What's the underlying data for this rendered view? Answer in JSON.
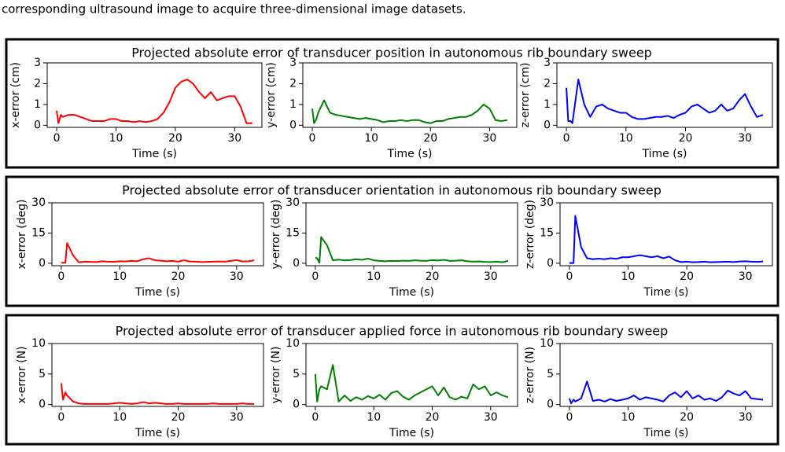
{
  "caption": "corresponding ultrasound image to acquire three-dimensional image datasets.",
  "chart_data": [
    {
      "type": "line",
      "title": "Projected absolute error of transducer position in autonomous rib boundary sweep",
      "xlabel": "Time (s)",
      "ylabel": "x-error (cm)",
      "color": "#ff0000",
      "xlim": [
        -1.6,
        34.6
      ],
      "xticks": [
        0,
        10,
        20,
        30
      ],
      "ylim": [
        -0.1,
        3
      ],
      "yticks": [
        0,
        1,
        2,
        3
      ],
      "x": [
        0,
        0.3,
        0.7,
        1,
        2,
        3,
        4,
        5,
        6,
        7,
        8,
        9,
        10,
        11,
        12,
        13,
        14,
        15,
        16,
        17,
        18,
        19,
        20,
        21,
        22,
        23,
        24,
        25,
        26,
        27,
        28,
        29,
        30,
        31,
        32,
        33
      ],
      "values": [
        0.7,
        0.1,
        0.5,
        0.4,
        0.5,
        0.5,
        0.4,
        0.3,
        0.2,
        0.2,
        0.2,
        0.3,
        0.3,
        0.2,
        0.2,
        0.15,
        0.2,
        0.15,
        0.2,
        0.3,
        0.6,
        1.1,
        1.8,
        2.1,
        2.2,
        2.0,
        1.6,
        1.3,
        1.6,
        1.2,
        1.3,
        1.4,
        1.4,
        0.9,
        0.1,
        0.1
      ]
    },
    {
      "type": "line",
      "xlabel": "Time (s)",
      "ylabel": "y-error (cm)",
      "color": "#008000",
      "xlim": [
        -1.6,
        34.6
      ],
      "xticks": [
        0,
        10,
        20,
        30
      ],
      "ylim": [
        -0.1,
        3
      ],
      "yticks": [
        0,
        1,
        2,
        3
      ],
      "x": [
        0,
        0.3,
        0.7,
        1,
        2,
        3,
        4,
        5,
        6,
        7,
        8,
        9,
        10,
        11,
        12,
        13,
        14,
        15,
        16,
        17,
        18,
        19,
        20,
        21,
        22,
        23,
        24,
        25,
        26,
        27,
        28,
        29,
        30,
        31,
        32,
        33
      ],
      "values": [
        0.8,
        0.1,
        0.3,
        0.6,
        1.2,
        0.6,
        0.5,
        0.45,
        0.4,
        0.35,
        0.3,
        0.35,
        0.3,
        0.25,
        0.15,
        0.2,
        0.2,
        0.25,
        0.2,
        0.25,
        0.25,
        0.15,
        0.1,
        0.2,
        0.2,
        0.3,
        0.35,
        0.4,
        0.4,
        0.5,
        0.7,
        1.0,
        0.8,
        0.25,
        0.2,
        0.25
      ]
    },
    {
      "type": "line",
      "xlabel": "Time (s)",
      "ylabel": "z-error (cm)",
      "color": "#0000ff",
      "xlim": [
        -1.6,
        34.6
      ],
      "xticks": [
        0,
        10,
        20,
        30
      ],
      "ylim": [
        -0.1,
        3
      ],
      "yticks": [
        0,
        1,
        2,
        3
      ],
      "x": [
        0,
        0.3,
        0.7,
        1,
        2,
        3,
        4,
        5,
        6,
        7,
        8,
        9,
        10,
        11,
        12,
        13,
        14,
        15,
        16,
        17,
        18,
        19,
        20,
        21,
        22,
        23,
        24,
        25,
        26,
        27,
        28,
        29,
        30,
        31,
        32,
        33
      ],
      "values": [
        1.8,
        0.2,
        0.2,
        0.1,
        2.2,
        1.0,
        0.4,
        0.9,
        1.0,
        0.8,
        0.7,
        0.6,
        0.6,
        0.4,
        0.3,
        0.3,
        0.35,
        0.4,
        0.4,
        0.45,
        0.35,
        0.5,
        0.6,
        0.9,
        1.0,
        0.8,
        0.6,
        0.7,
        1.0,
        0.7,
        0.8,
        1.2,
        1.5,
        0.9,
        0.4,
        0.5
      ]
    },
    {
      "type": "line",
      "title": "Projected absolute error of transducer orientation in autonomous rib boundary sweep",
      "xlabel": "Time (s)",
      "ylabel": "x-error (deg)",
      "color": "#ff0000",
      "xlim": [
        -1.6,
        34.6
      ],
      "xticks": [
        0,
        10,
        20,
        30
      ],
      "ylim": [
        -1.2,
        30
      ],
      "yticks": [
        0,
        15,
        30
      ],
      "x": [
        0,
        0.3,
        0.7,
        1,
        2,
        3,
        4,
        5,
        6,
        7,
        8,
        9,
        10,
        11,
        12,
        13,
        14,
        15,
        16,
        17,
        18,
        19,
        20,
        21,
        22,
        23,
        24,
        25,
        26,
        27,
        28,
        29,
        30,
        31,
        32,
        33
      ],
      "values": [
        0.3,
        0.2,
        0.3,
        10,
        4,
        0.5,
        0.8,
        0.7,
        0.6,
        1,
        0.8,
        0.7,
        1,
        0.9,
        1.2,
        1,
        2,
        2.5,
        1.5,
        1.3,
        1,
        1.2,
        0.8,
        1.5,
        0.9,
        0.8,
        0.6,
        0.7,
        0.8,
        0.9,
        0.8,
        1.2,
        1.6,
        0.9,
        1.0,
        1.5
      ]
    },
    {
      "type": "line",
      "xlabel": "Time (s)",
      "ylabel": "y-error (deg)",
      "color": "#008000",
      "xlim": [
        -1.6,
        34.6
      ],
      "xticks": [
        0,
        10,
        20,
        30
      ],
      "ylim": [
        -1.2,
        30
      ],
      "yticks": [
        0,
        15,
        30
      ],
      "x": [
        0,
        0.3,
        0.7,
        1,
        2,
        3,
        4,
        5,
        6,
        7,
        8,
        9,
        10,
        11,
        12,
        13,
        14,
        15,
        16,
        17,
        18,
        19,
        20,
        21,
        22,
        23,
        24,
        25,
        26,
        27,
        28,
        29,
        30,
        31,
        32,
        33
      ],
      "values": [
        2.8,
        2.5,
        0.3,
        13,
        9,
        1.5,
        1.8,
        1.5,
        1.6,
        2,
        1.7,
        2.3,
        1.5,
        1.2,
        1,
        1.2,
        1.1,
        1.3,
        1.2,
        1.5,
        1.3,
        1.2,
        1.6,
        1.4,
        1.7,
        1.2,
        1.3,
        1.5,
        1,
        0.8,
        0.9,
        0.7,
        0.6,
        0.8,
        0.5,
        1.2
      ]
    },
    {
      "type": "line",
      "xlabel": "Time (s)",
      "ylabel": "z-error (deg)",
      "color": "#0000ff",
      "xlim": [
        -1.6,
        34.6
      ],
      "xticks": [
        0,
        10,
        20,
        30
      ],
      "ylim": [
        -1.2,
        30
      ],
      "yticks": [
        0,
        15,
        30
      ],
      "x": [
        0,
        0.3,
        0.7,
        1,
        2,
        3,
        4,
        5,
        6,
        7,
        8,
        9,
        10,
        11,
        12,
        13,
        14,
        15,
        16,
        17,
        18,
        19,
        20,
        21,
        22,
        23,
        24,
        25,
        26,
        27,
        28,
        29,
        30,
        31,
        32,
        33
      ],
      "values": [
        0.1,
        0.1,
        0.1,
        23.5,
        8,
        2.5,
        2,
        2.3,
        2,
        2.5,
        2.2,
        3,
        3,
        3.5,
        4,
        3.5,
        3,
        3.5,
        2.5,
        3.3,
        1.5,
        0.6,
        0.8,
        0.5,
        0.6,
        0.8,
        0.5,
        0.6,
        0.7,
        0.8,
        0.6,
        0.9,
        1.0,
        0.8,
        0.7,
        0.9
      ]
    },
    {
      "type": "line",
      "title": "Projected absolute error of transducer applied force in autonomous rib boundary sweep",
      "xlabel": "Time (s)",
      "ylabel": "x-error (N)",
      "color": "#ff0000",
      "xlim": [
        -1.6,
        34.6
      ],
      "xticks": [
        0,
        10,
        20,
        30
      ],
      "ylim": [
        -0.3,
        10
      ],
      "yticks": [
        0,
        5,
        10
      ],
      "x": [
        0,
        0.3,
        0.7,
        1,
        2,
        3,
        4,
        5,
        6,
        7,
        8,
        9,
        10,
        11,
        12,
        13,
        14,
        15,
        16,
        17,
        18,
        19,
        20,
        21,
        22,
        23,
        24,
        25,
        26,
        27,
        28,
        29,
        30,
        31,
        32,
        33
      ],
      "values": [
        3.5,
        0.8,
        2,
        1.5,
        0.5,
        0.2,
        0.1,
        0.1,
        0.1,
        0.1,
        0.1,
        0.2,
        0.3,
        0.2,
        0.1,
        0.2,
        0.4,
        0.2,
        0.3,
        0.2,
        0.1,
        0.1,
        0.2,
        0.1,
        0.1,
        0.1,
        0.1,
        0.1,
        0.2,
        0.1,
        0.1,
        0.1,
        0.1,
        0.2,
        0.1,
        0.1
      ]
    },
    {
      "type": "line",
      "xlabel": "Time (s)",
      "ylabel": "y-error (N)",
      "color": "#008000",
      "xlim": [
        -1.6,
        34.6
      ],
      "xticks": [
        0,
        10,
        20,
        30
      ],
      "ylim": [
        -0.3,
        10
      ],
      "yticks": [
        0,
        5,
        10
      ],
      "x": [
        0,
        0.3,
        0.7,
        1,
        2,
        3,
        4,
        5,
        6,
        7,
        8,
        9,
        10,
        11,
        12,
        13,
        14,
        15,
        16,
        17,
        18,
        19,
        20,
        21,
        22,
        23,
        24,
        25,
        26,
        27,
        28,
        29,
        30,
        31,
        32,
        33
      ],
      "values": [
        5,
        0.5,
        2.5,
        3,
        2.5,
        6.5,
        0.5,
        1.5,
        0.6,
        1.2,
        0.8,
        1.4,
        1.0,
        1.6,
        0.8,
        1.9,
        2.2,
        1.3,
        0.8,
        1.5,
        2.0,
        2.5,
        3.0,
        1.5,
        2.8,
        1.2,
        0.8,
        1.3,
        1.0,
        3.3,
        2.5,
        3.0,
        1.5,
        2.0,
        1.5,
        1.2
      ]
    },
    {
      "type": "line",
      "xlabel": "Time (s)",
      "ylabel": "z-error (N)",
      "color": "#0000ff",
      "xlim": [
        -1.6,
        34.6
      ],
      "xticks": [
        0,
        10,
        20,
        30
      ],
      "ylim": [
        -0.3,
        10
      ],
      "yticks": [
        0,
        5,
        10
      ],
      "x": [
        0,
        0.3,
        0.7,
        1,
        2,
        3,
        4,
        5,
        6,
        7,
        8,
        9,
        10,
        11,
        12,
        13,
        14,
        15,
        16,
        17,
        18,
        19,
        20,
        21,
        22,
        23,
        24,
        25,
        26,
        27,
        28,
        29,
        30,
        31,
        32,
        33
      ],
      "values": [
        1,
        0.2,
        0.8,
        0.5,
        1,
        3.8,
        0.6,
        0.8,
        0.5,
        0.9,
        0.6,
        0.8,
        1.0,
        1.5,
        0.8,
        1.2,
        1.0,
        0.8,
        0.5,
        1.5,
        2.0,
        1.2,
        2.2,
        1.0,
        1.5,
        0.8,
        1.0,
        0.6,
        1.2,
        2.3,
        1.8,
        1.5,
        2.2,
        1.0,
        0.9,
        0.8
      ]
    }
  ]
}
